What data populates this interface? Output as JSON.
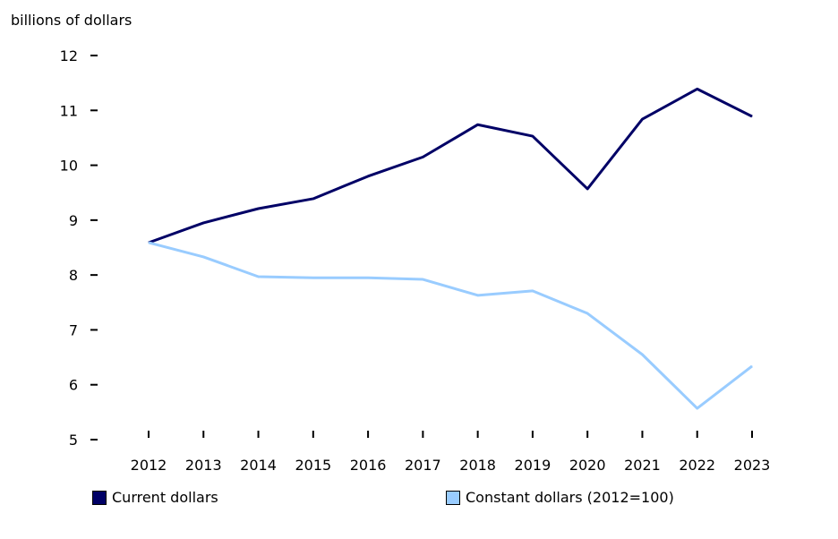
{
  "chart_data": {
    "type": "line",
    "ylabel": "billions of dollars",
    "xlabel": "",
    "categories": [
      "2012",
      "2013",
      "2014",
      "2015",
      "2016",
      "2017",
      "2018",
      "2019",
      "2020",
      "2021",
      "2022",
      "2023"
    ],
    "ylim": [
      5,
      12
    ],
    "yticks": [
      5,
      6,
      7,
      8,
      9,
      10,
      11,
      12
    ],
    "grid": false,
    "legend": "bottom",
    "series": [
      {
        "name": "Current dollars",
        "color": "#000066",
        "values": [
          8.59,
          8.95,
          9.21,
          9.39,
          9.8,
          10.15,
          10.74,
          10.53,
          9.57,
          10.84,
          11.39,
          10.89
        ]
      },
      {
        "name": "Constant dollars (2012=100)",
        "color": "#99ccff",
        "values": [
          8.59,
          8.33,
          7.97,
          7.95,
          7.95,
          7.92,
          7.63,
          7.71,
          7.3,
          6.55,
          5.57,
          6.34
        ]
      }
    ]
  }
}
